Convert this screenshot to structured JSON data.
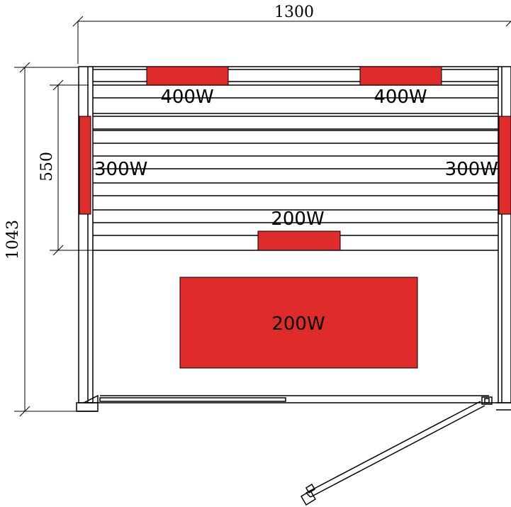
{
  "dimensions": {
    "width": "1300",
    "depth": "1043",
    "bench_depth": "550"
  },
  "heaters": {
    "back_left": "400W",
    "back_right": "400W",
    "side_left": "300W",
    "side_right": "300W",
    "bench_front": "200W",
    "floor": "200W"
  },
  "colors": {
    "heater": "#e02b2b",
    "line": "#000000",
    "background": "#ffffff"
  }
}
